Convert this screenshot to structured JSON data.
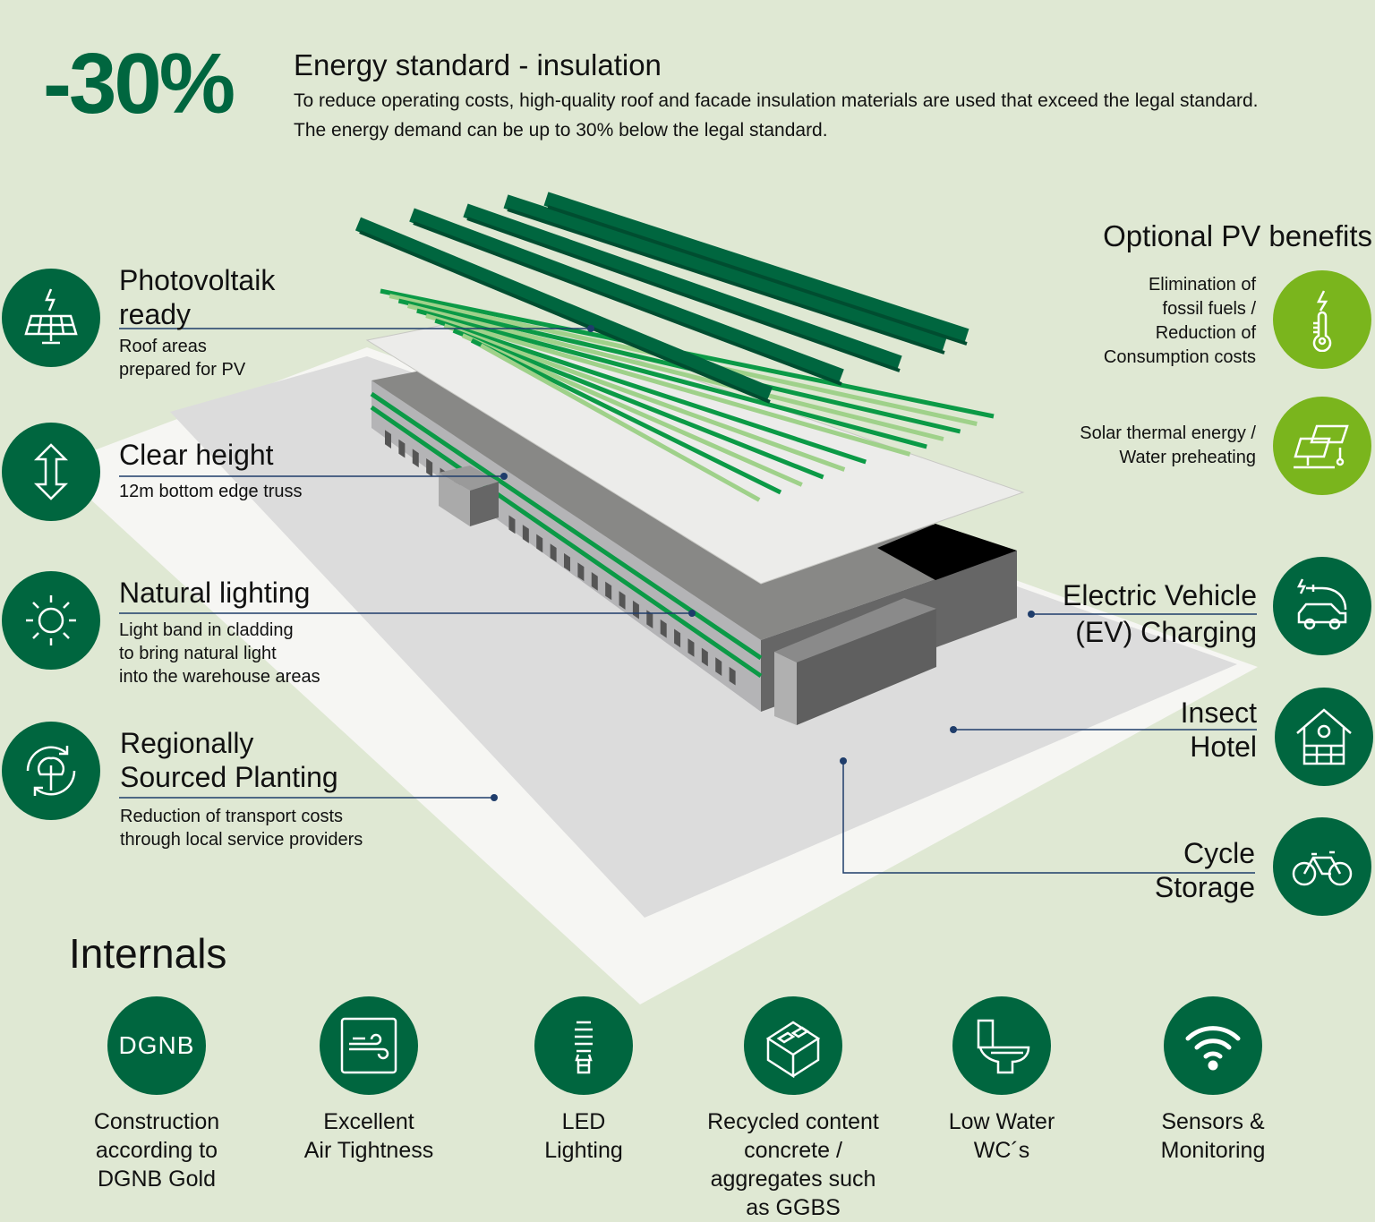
{
  "header": {
    "big_value": "-30%",
    "title": "Energy standard - insulation",
    "body_lines": [
      "To reduce operating costs, high-quality roof and facade insulation materials are used that exceed the legal standard.",
      "The energy demand can be up to 30% below the legal standard."
    ]
  },
  "left_features": [
    {
      "icon": "solar-panel-icon",
      "title_lines": [
        "Photovoltaik",
        "ready"
      ],
      "sub_lines": [
        "Roof areas",
        "prepared for PV"
      ]
    },
    {
      "icon": "vertical-arrows-icon",
      "title_lines": [
        "Clear height"
      ],
      "sub_lines": [
        "12m bottom edge truss"
      ]
    },
    {
      "icon": "sun-icon",
      "title_lines": [
        "Natural lighting"
      ],
      "sub_lines": [
        "Light band in cladding",
        "to bring natural light",
        "into the warehouse areas"
      ]
    },
    {
      "icon": "tree-recycle-icon",
      "title_lines": [
        "Regionally",
        "Sourced Planting"
      ],
      "sub_lines": [
        "Reduction of transport costs",
        "through local service providers"
      ]
    }
  ],
  "pv_benefits": {
    "title": "Optional PV benefits",
    "items": [
      {
        "icon": "lightning-thermometer-icon",
        "lines": [
          "Elimination of",
          "fossil fuels /",
          "Reduction of",
          "Consumption costs"
        ]
      },
      {
        "icon": "solar-thermal-icon",
        "lines": [
          "Solar thermal energy /",
          "Water preheating"
        ]
      }
    ]
  },
  "right_features": [
    {
      "icon": "ev-charging-icon",
      "lines": [
        "Electric Vehicle",
        "(EV) Charging"
      ]
    },
    {
      "icon": "insect-hotel-icon",
      "lines": [
        "Insect",
        "Hotel"
      ]
    },
    {
      "icon": "bicycle-icon",
      "lines": [
        "Cycle",
        "Storage"
      ]
    }
  ],
  "internals": {
    "title": "Internals",
    "items": [
      {
        "icon": "dgnb-icon",
        "icon_text": "DGNB",
        "lines": [
          "Construction",
          "according to",
          "DGNB Gold"
        ]
      },
      {
        "icon": "wind-icon",
        "lines": [
          "Excellent",
          "Air Tightness"
        ]
      },
      {
        "icon": "led-bulb-icon",
        "lines": [
          "LED",
          "Lighting"
        ]
      },
      {
        "icon": "concrete-block-icon",
        "lines": [
          "Recycled content",
          "concrete /",
          "aggregates such",
          "as GGBS"
        ]
      },
      {
        "icon": "toilet-icon",
        "lines": [
          "Low Water",
          "WC´s"
        ]
      },
      {
        "icon": "wifi-icon",
        "lines": [
          "Sensors &",
          "Monitoring"
        ]
      }
    ]
  },
  "colors": {
    "background": "#dfe8d3",
    "dark_green": "#00663f",
    "light_green": "#7ab51d",
    "leader_line": "#1f3d6b"
  }
}
